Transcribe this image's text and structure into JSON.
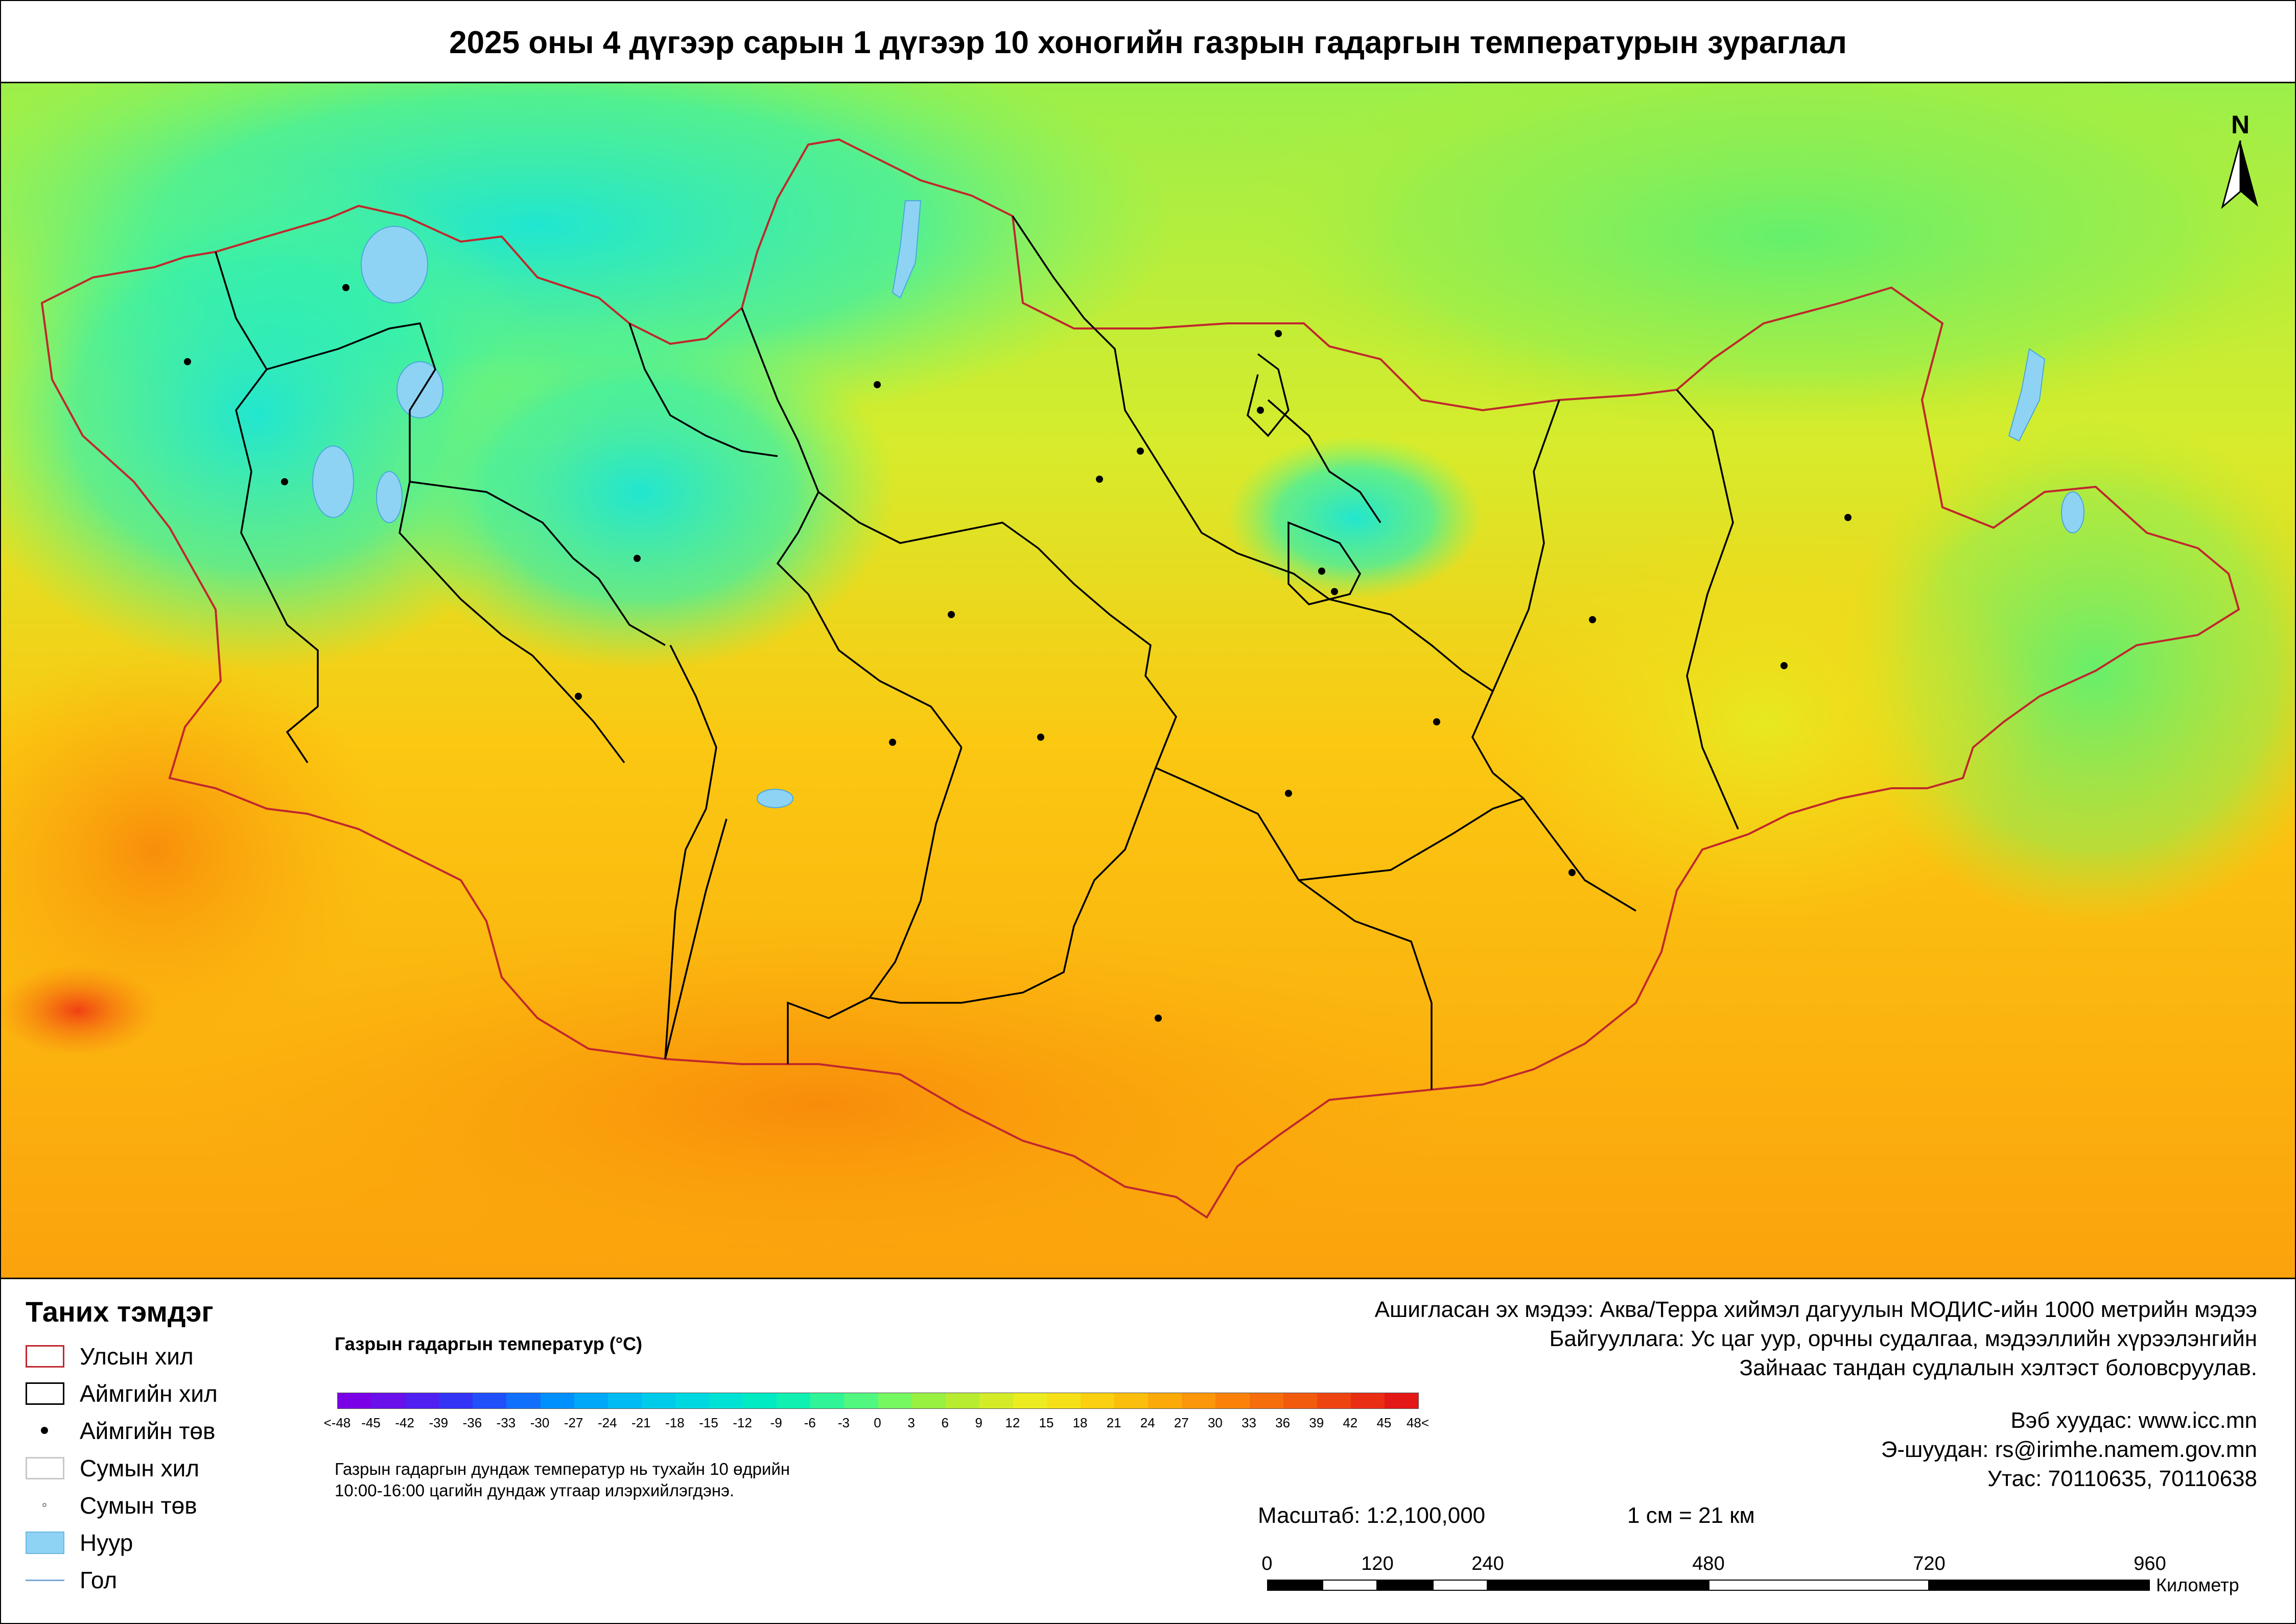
{
  "title": "2025 оны 4 дүгээр сарын 1 дүгээр 10 хоногийн газрын гадаргын температурын зураглал",
  "north_label": "N",
  "legend": {
    "title": "Таних тэмдэг",
    "items": [
      {
        "label": "Улсын хил",
        "symbol": "state-border"
      },
      {
        "label": "Аймгийн хил",
        "symbol": "province-border"
      },
      {
        "label": "Аймгийн төв",
        "symbol": "province-center"
      },
      {
        "label": "Сумын хил",
        "symbol": "soum-border"
      },
      {
        "label": "Сумын төв",
        "symbol": "soum-center"
      },
      {
        "label": "Нуур",
        "symbol": "lake"
      },
      {
        "label": "Гол",
        "symbol": "river"
      }
    ]
  },
  "colorbar": {
    "title": "Газрын гадаргын температур (°C)",
    "labels": [
      "<-48",
      "-45",
      "-42",
      "-39",
      "-36",
      "-33",
      "-30",
      "-27",
      "-24",
      "-21",
      "-18",
      "-15",
      "-12",
      "-9",
      "-6",
      "-3",
      "0",
      "3",
      "6",
      "9",
      "12",
      "15",
      "18",
      "21",
      "24",
      "27",
      "30",
      "33",
      "36",
      "39",
      "42",
      "45",
      "48<"
    ],
    "colors": [
      "#7a00e6",
      "#6a10ea",
      "#5020f0",
      "#3434f6",
      "#2050fa",
      "#1070fc",
      "#0090fc",
      "#00a8f8",
      "#00bcf2",
      "#00ccea",
      "#00d8e0",
      "#00e2d4",
      "#00eac4",
      "#10f0b0",
      "#30f598",
      "#50f880",
      "#76f860",
      "#98f040",
      "#b8ec30",
      "#d4ec28",
      "#ecec20",
      "#f6e018",
      "#fad010",
      "#fcbe0c",
      "#fcaa0a",
      "#fc960a",
      "#fa820a",
      "#f66e0c",
      "#f25a0e",
      "#ee4412",
      "#ea2e14",
      "#e41816"
    ],
    "note_line1": "Газрын гадаргын дундаж температур нь тухайн 10 өдрийн",
    "note_line2": "10:00-16:00 цагийн дундаж утгаар илэрхийлэгдэнэ."
  },
  "source": {
    "line1": "Ашигласан эх мэдээ: Аква/Терра хиймэл дагуулын МОДИС-ийн 1000 метрийн мэдээ",
    "line2": "Байгууллага: Ус цаг уур, орчны судалгаа, мэдээллийн хүрээлэнгийн",
    "line3": "Зайнаас тандан судлалын хэлтэст боловсруулав."
  },
  "contact": {
    "web": "Вэб хуудас: www.icc.mn",
    "email": "Э-шуудан: rs@irimhe.namem.gov.mn",
    "phone": "Утас: 70110635, 70110638"
  },
  "scale": {
    "ratio_text": "Масштаб: 1:2,100,000",
    "cm_text": "1 см = 21 км",
    "ticks": [
      "0",
      "120",
      "240",
      "480",
      "720",
      "960"
    ],
    "unit": "Километр"
  }
}
